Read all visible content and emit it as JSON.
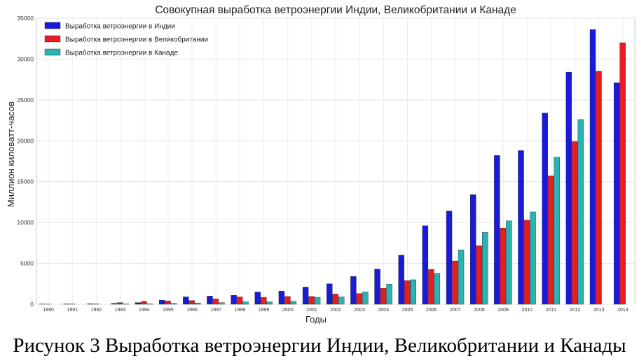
{
  "chart_data": {
    "type": "bar",
    "title": "Совокупная выработка ветроэнергии Индии, Великобритании и Канаде",
    "xlabel": "Годы",
    "ylabel": "Миллион киловатт-часов",
    "ylim": [
      0,
      35000
    ],
    "yticks": [
      0,
      5000,
      10000,
      15000,
      20000,
      25000,
      30000,
      35000
    ],
    "grid": true,
    "legend_position": "top-left",
    "categories": [
      "1990",
      "1991",
      "1992",
      "1993",
      "1994",
      "1995",
      "1996",
      "1997",
      "1998",
      "1999",
      "2000",
      "2001",
      "2002",
      "2003",
      "2004",
      "2005",
      "2006",
      "2007",
      "2008",
      "2009",
      "2010",
      "2011",
      "2012",
      "2013",
      "2014"
    ],
    "series": [
      {
        "name": "Выработка ветроэнергии в Индии",
        "color": "#1a1adb",
        "values": [
          30,
          40,
          60,
          110,
          200,
          500,
          900,
          1000,
          1100,
          1500,
          1600,
          2100,
          2500,
          3400,
          4300,
          6000,
          9600,
          11400,
          13400,
          18200,
          18800,
          23400,
          28400,
          33600,
          27100
        ]
      },
      {
        "name": "Выработка ветроэнергии в Великобритании",
        "color": "#e81c24",
        "values": [
          10,
          20,
          30,
          200,
          350,
          400,
          450,
          650,
          900,
          850,
          950,
          950,
          1250,
          1300,
          1950,
          2900,
          4250,
          5300,
          7150,
          9300,
          10300,
          15700,
          19900,
          28500,
          32000
        ]
      },
      {
        "name": "Выработка ветроэнергии в Канаде",
        "color": "#2ab3b0",
        "values": [
          0,
          0,
          0,
          30,
          50,
          100,
          150,
          200,
          300,
          300,
          350,
          850,
          900,
          1500,
          2450,
          3000,
          3800,
          6650,
          8800,
          10200,
          11300,
          18000,
          22600,
          null,
          null
        ]
      }
    ]
  },
  "caption": "Рисунок 3 Выработка ветроэнергии Индии, Великобритании и Канады"
}
